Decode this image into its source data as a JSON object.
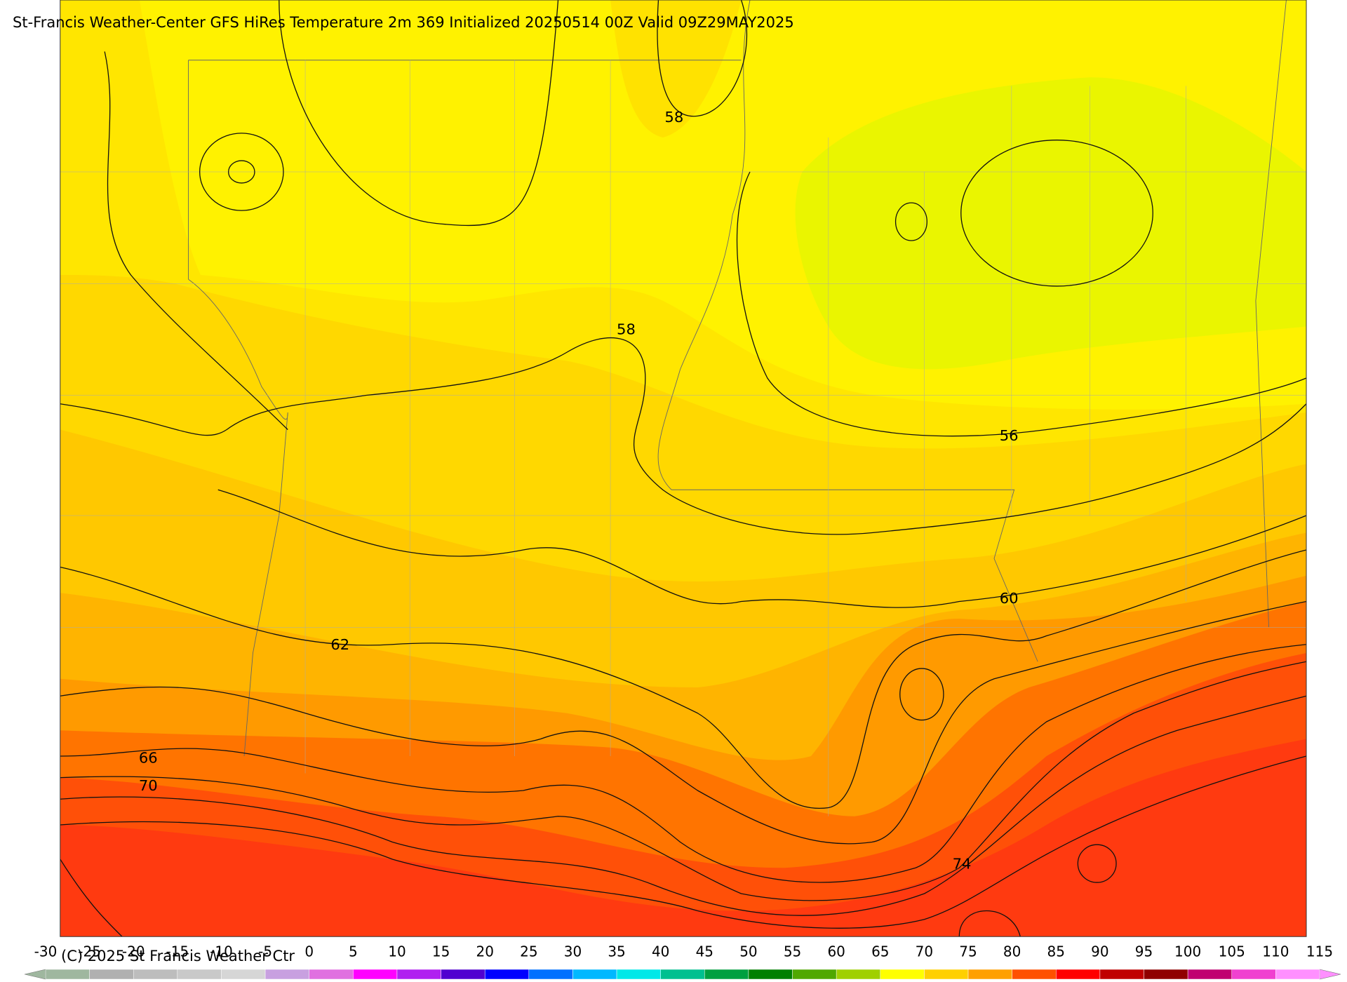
{
  "title": "St-Francis Weather-Center GFS HiRes Temperature 2m  369 Initialized 20250514 00Z Valid 09Z29MAY2025",
  "copyright": "(C) 2025 St Francis Weather Ctr",
  "contour_labels": [
    58,
    58,
    56,
    60,
    62,
    66,
    70,
    74
  ],
  "colorbar": {
    "ticks": [
      -30,
      -25,
      -20,
      -15,
      -10,
      -5,
      0,
      5,
      10,
      15,
      20,
      25,
      30,
      35,
      40,
      45,
      50,
      55,
      60,
      65,
      70,
      75,
      80,
      85,
      90,
      95,
      100,
      105,
      110,
      115
    ],
    "colors": [
      "#9fb79f",
      "#b0b0b0",
      "#bdbdbd",
      "#c9c9c9",
      "#d6d6d6",
      "#c8a0e0",
      "#e070e0",
      "#ff00ff",
      "#b020f0",
      "#5000d0",
      "#0000ff",
      "#0070ff",
      "#00b8ff",
      "#00e8e8",
      "#00c090",
      "#00a040",
      "#008000",
      "#50a800",
      "#a0d000",
      "#ffff00",
      "#ffd000",
      "#ffa000",
      "#ff5000",
      "#ff0000",
      "#c00000",
      "#900000",
      "#c00070",
      "#f040d0",
      "#ff90ff"
    ]
  }
}
